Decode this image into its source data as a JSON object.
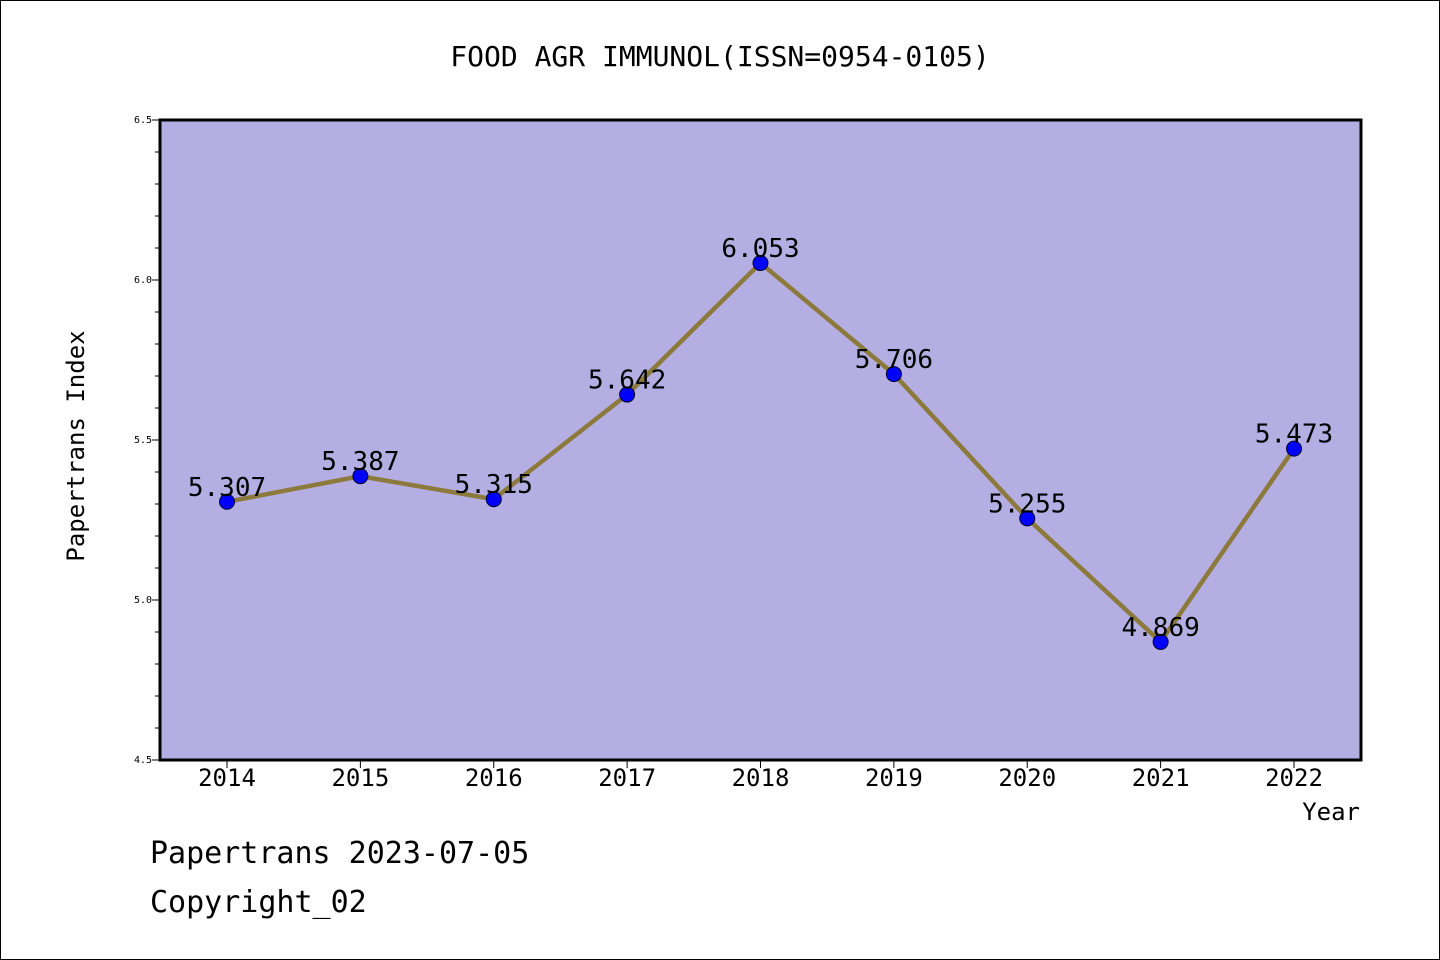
{
  "chart_data": {
    "type": "line",
    "title": "FOOD AGR IMMUNOL(ISSN=0954-0105)",
    "xlabel": "Year",
    "ylabel": "Papertrans Index",
    "categories": [
      "2014",
      "2015",
      "2016",
      "2017",
      "2018",
      "2019",
      "2020",
      "2021",
      "2022"
    ],
    "series": [
      {
        "values": [
          5.307,
          5.387,
          5.315,
          5.642,
          6.053,
          5.706,
          5.255,
          4.869,
          5.473
        ]
      }
    ],
    "data_labels": [
      "5.307",
      "5.387",
      "5.315",
      "5.642",
      "6.053",
      "5.706",
      "5.255",
      "4.869",
      "5.473"
    ],
    "ylim": [
      4.5,
      6.5
    ],
    "yticks": [
      "4.5",
      "5.0",
      "5.5",
      "6.0",
      "6.5"
    ],
    "grid": false,
    "colors": {
      "plot_background": "#b4aee2",
      "line": "#8c7a3c",
      "marker": "#0000ff"
    }
  },
  "footer": {
    "line1": "Papertrans 2023-07-05",
    "line2": "Copyright_02"
  }
}
